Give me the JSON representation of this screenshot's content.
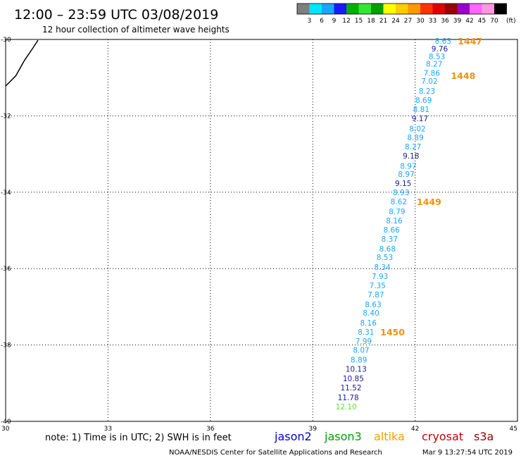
{
  "title": "12:00 – 23:59 UTC 03/08/2019",
  "subtitle": "12 hour collection of altimeter wave heights",
  "color_scale": {
    "labels": [
      "3",
      "6",
      "9",
      "12",
      "15",
      "18",
      "21",
      "24",
      "27",
      "30",
      "33",
      "36",
      "39",
      "42",
      "45",
      "70"
    ],
    "unit": "(ft)",
    "colors": [
      "#7f7f7f",
      "#00e5ff",
      "#1aa6ff",
      "#1a1aff",
      "#00b000",
      "#33e633",
      "#00a000",
      "#ffff00",
      "#ffcc00",
      "#ff9900",
      "#ff3300",
      "#e00000",
      "#990000",
      "#9900cc",
      "#ff66ff",
      "#ff99dd",
      "#000000"
    ]
  },
  "note": "note:  1) Time is in UTC;  2) SWH is in feet",
  "legend": [
    {
      "name": "jason2",
      "color": "#0000cc"
    },
    {
      "name": "jason3",
      "color": "#00a000"
    },
    {
      "name": "altika",
      "color": "#ff9900"
    },
    {
      "name": "cryosat",
      "color": "#cc0000"
    },
    {
      "name": "s3a",
      "color": "#990000"
    }
  ],
  "footer_left": "NOAA/NESDIS Center for Satellite Applications and Research",
  "footer_right": "Mar  9 13:27:54 UTC 2019",
  "chart_data": {
    "type": "scatter",
    "xlim": [
      30,
      45
    ],
    "ylim": [
      -40,
      -30
    ],
    "x_ticks": [
      "30",
      "33",
      "36",
      "39",
      "42",
      "45"
    ],
    "y_ticks": [
      "-30",
      "-32",
      "-34",
      "-36",
      "-38",
      "-40"
    ],
    "grid": true,
    "colors": {
      "light_blue": "#1aa6ff",
      "dark_blue": "#1a1a9e",
      "green": "#66dd33",
      "orange": "#f09010"
    },
    "points": [
      {
        "x": 42.82,
        "y": -30.04,
        "label": "8.63",
        "color": "light_blue"
      },
      {
        "x": 42.72,
        "y": -30.24,
        "label": "9.76",
        "color": "dark_blue"
      },
      {
        "x": 42.64,
        "y": -30.44,
        "label": "8.53",
        "color": "light_blue"
      },
      {
        "x": 42.56,
        "y": -30.64,
        "label": "8.27",
        "color": "light_blue"
      },
      {
        "x": 42.49,
        "y": -30.88,
        "label": "7.86",
        "color": "light_blue"
      },
      {
        "x": 42.42,
        "y": -31.09,
        "label": "7.02",
        "color": "light_blue"
      },
      {
        "x": 42.35,
        "y": -31.35,
        "label": "8.23",
        "color": "light_blue"
      },
      {
        "x": 42.25,
        "y": -31.59,
        "label": "8.69",
        "color": "light_blue"
      },
      {
        "x": 42.18,
        "y": -31.83,
        "label": "8.81",
        "color": "light_blue"
      },
      {
        "x": 42.14,
        "y": -32.07,
        "label": "9.17",
        "color": "dark_blue"
      },
      {
        "x": 42.07,
        "y": -32.33,
        "label": "8.02",
        "color": "light_blue"
      },
      {
        "x": 42.01,
        "y": -32.56,
        "label": "8.89",
        "color": "light_blue"
      },
      {
        "x": 41.94,
        "y": -32.8,
        "label": "8.27",
        "color": "light_blue"
      },
      {
        "x": 41.88,
        "y": -33.04,
        "label": "9.18",
        "color": "dark_blue"
      },
      {
        "x": 41.8,
        "y": -33.31,
        "label": "8.97",
        "color": "light_blue"
      },
      {
        "x": 41.74,
        "y": -33.52,
        "label": "8.97",
        "color": "light_blue"
      },
      {
        "x": 41.65,
        "y": -33.76,
        "label": "9.15",
        "color": "dark_blue"
      },
      {
        "x": 41.59,
        "y": -34.0,
        "label": "8.93",
        "color": "light_blue"
      },
      {
        "x": 41.52,
        "y": -34.24,
        "label": "8.62",
        "color": "light_blue"
      },
      {
        "x": 41.47,
        "y": -34.5,
        "label": "8.79",
        "color": "light_blue"
      },
      {
        "x": 41.39,
        "y": -34.74,
        "label": "8.16",
        "color": "light_blue"
      },
      {
        "x": 41.31,
        "y": -34.98,
        "label": "8.66",
        "color": "light_blue"
      },
      {
        "x": 41.25,
        "y": -35.22,
        "label": "8.37",
        "color": "light_blue"
      },
      {
        "x": 41.19,
        "y": -35.48,
        "label": "8.68",
        "color": "light_blue"
      },
      {
        "x": 41.11,
        "y": -35.7,
        "label": "8.53",
        "color": "light_blue"
      },
      {
        "x": 41.04,
        "y": -35.96,
        "label": "8.34",
        "color": "light_blue"
      },
      {
        "x": 40.97,
        "y": -36.2,
        "label": "7.93",
        "color": "light_blue"
      },
      {
        "x": 40.9,
        "y": -36.44,
        "label": "7.35",
        "color": "light_blue"
      },
      {
        "x": 40.85,
        "y": -36.68,
        "label": "7.87",
        "color": "light_blue"
      },
      {
        "x": 40.77,
        "y": -36.94,
        "label": "8.63",
        "color": "light_blue"
      },
      {
        "x": 40.71,
        "y": -37.16,
        "label": "8.40",
        "color": "light_blue"
      },
      {
        "x": 40.63,
        "y": -37.42,
        "label": "8.16",
        "color": "light_blue"
      },
      {
        "x": 40.56,
        "y": -37.66,
        "label": "8.31",
        "color": "light_blue"
      },
      {
        "x": 40.49,
        "y": -37.9,
        "label": "7.99",
        "color": "light_blue"
      },
      {
        "x": 40.42,
        "y": -38.13,
        "label": "8.07",
        "color": "light_blue"
      },
      {
        "x": 40.35,
        "y": -38.39,
        "label": "8.89",
        "color": "light_blue"
      },
      {
        "x": 40.27,
        "y": -38.63,
        "label": "10.13",
        "color": "dark_blue"
      },
      {
        "x": 40.19,
        "y": -38.87,
        "label": "10.85",
        "color": "dark_blue"
      },
      {
        "x": 40.12,
        "y": -39.11,
        "label": "11.52",
        "color": "dark_blue"
      },
      {
        "x": 40.04,
        "y": -39.37,
        "label": "11.78",
        "color": "dark_blue"
      },
      {
        "x": 39.98,
        "y": -39.61,
        "label": "12.10",
        "color": "green"
      }
    ],
    "time_annotations": [
      {
        "x": 43.25,
        "y": -30.04,
        "label": "1447"
      },
      {
        "x": 43.05,
        "y": -30.94,
        "label": "1448"
      },
      {
        "x": 42.05,
        "y": -34.24,
        "label": "1449"
      },
      {
        "x": 40.98,
        "y": -37.66,
        "label": "1450"
      }
    ],
    "coastline": [
      [
        30.0,
        -31.22
      ],
      [
        30.3,
        -30.95
      ],
      [
        30.55,
        -30.55
      ],
      [
        30.78,
        -30.25
      ],
      [
        30.95,
        -30.02
      ]
    ]
  }
}
